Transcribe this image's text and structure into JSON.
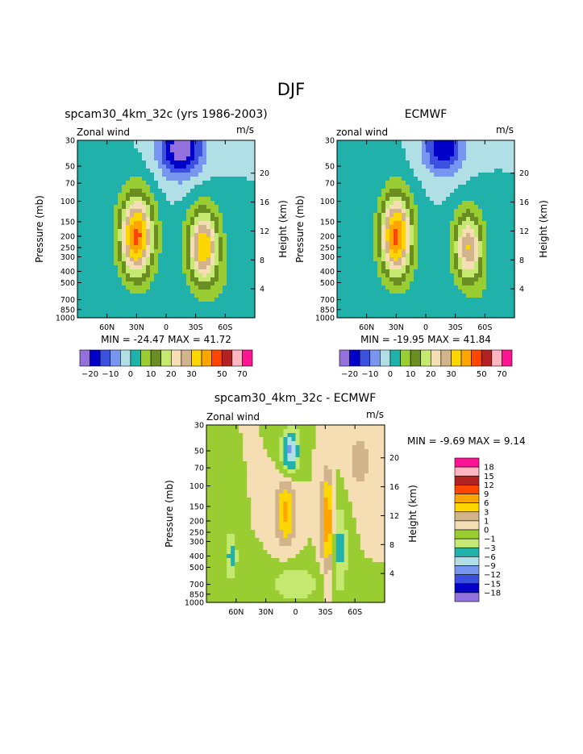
{
  "figure": {
    "main_title": "DJF"
  },
  "colors": {
    "palette": [
      "#9370db",
      "#0000c8",
      "#3c50e0",
      "#7896f0",
      "#b0e0e6",
      "#20b2aa",
      "#9acd32",
      "#6b8e23",
      "#c4e870",
      "#f5deb3",
      "#d2b48c",
      "#ffd700",
      "#ffa500",
      "#ff4500",
      "#b22222",
      "#ffb6c1",
      "#ff1493"
    ],
    "zero_fill": "#f5deb3"
  },
  "chart_data": [
    {
      "id": "model",
      "type": "contour",
      "title": "spcam30_4km_32c (yrs 1986-2003)",
      "left_label": "Zonal wind",
      "right_label": "m/s",
      "ylabel": "Pressure (mb)",
      "y2label": "Height (km)",
      "x_ticks": [
        "60N",
        "30N",
        "0",
        "30S",
        "60S"
      ],
      "x_tick_values": [
        60,
        30,
        0,
        -30,
        -60
      ],
      "xlim": [
        90,
        -90
      ],
      "y_ticks": [
        30,
        50,
        70,
        100,
        150,
        200,
        250,
        300,
        400,
        500,
        700,
        850,
        1000
      ],
      "ylim": [
        1000,
        30
      ],
      "y2_ticks": [
        4,
        8,
        12,
        16,
        20
      ],
      "min_max_text": "MIN = -24.47   MAX =  41.72",
      "min": -24.47,
      "max": 41.72,
      "levels": [
        -20,
        -15,
        -10,
        -5,
        0,
        5,
        10,
        15,
        20,
        25,
        30,
        35,
        40,
        50,
        60,
        70
      ],
      "level_labels": [
        "-20",
        "-10",
        "0",
        "10",
        "20",
        "30",
        "50",
        "70"
      ],
      "features": [
        {
          "lat": 30,
          "p": 200,
          "amp": 41.72,
          "w": 17,
          "h": 0.8
        },
        {
          "lat": -38,
          "p": 250,
          "amp": 35,
          "w": 16,
          "h": 0.75
        },
        {
          "lat": -15,
          "p": 35,
          "amp": -24.47,
          "w": 22,
          "h": 0.55
        },
        {
          "lat": -60,
          "p": 600,
          "amp": 3,
          "w": 14,
          "h": 0.5
        }
      ]
    },
    {
      "id": "obs",
      "type": "contour",
      "title": "ECMWF",
      "left_label": "zonal wind",
      "right_label": "m/s",
      "ylabel": "Pressure (mb)",
      "y2label": "Height (km)",
      "x_ticks": [
        "60N",
        "30N",
        "0",
        "30S",
        "60S"
      ],
      "x_tick_values": [
        60,
        30,
        0,
        -30,
        -60
      ],
      "xlim": [
        90,
        -90
      ],
      "y_ticks": [
        30,
        50,
        70,
        100,
        150,
        200,
        250,
        300,
        400,
        500,
        700,
        850,
        1000
      ],
      "ylim": [
        1000,
        30
      ],
      "y2_ticks": [
        4,
        8,
        12,
        16,
        20
      ],
      "min_max_text": "MIN = -19.95   MAX =  41.84",
      "min": -19.95,
      "max": 41.84,
      "levels": [
        -20,
        -15,
        -10,
        -5,
        0,
        5,
        10,
        15,
        20,
        25,
        30,
        35,
        40,
        50,
        60,
        70
      ],
      "level_labels": [
        "-20",
        "-10",
        "0",
        "10",
        "20",
        "30",
        "50",
        "70"
      ],
      "features": [
        {
          "lat": 30,
          "p": 200,
          "amp": 41.84,
          "w": 16,
          "h": 0.8
        },
        {
          "lat": -43,
          "p": 250,
          "amp": 30,
          "w": 15,
          "h": 0.7
        },
        {
          "lat": -18,
          "p": 35,
          "amp": -19.95,
          "w": 20,
          "h": 0.5
        },
        {
          "lat": -60,
          "p": 600,
          "amp": 3,
          "w": 14,
          "h": 0.5
        }
      ]
    },
    {
      "id": "diff",
      "type": "contour",
      "title": "spcam30_4km_32c - ECMWF",
      "left_label": "Zonal wind",
      "right_label": "m/s",
      "ylabel": "Pressure (mb)",
      "y2label": "Height (km)",
      "x_ticks": [
        "60N",
        "30N",
        "0",
        "30S",
        "60S"
      ],
      "x_tick_values": [
        60,
        30,
        0,
        -30,
        -60
      ],
      "xlim": [
        90,
        -90
      ],
      "y_ticks": [
        30,
        50,
        70,
        100,
        150,
        200,
        250,
        300,
        400,
        500,
        700,
        850,
        1000
      ],
      "ylim": [
        1000,
        30
      ],
      "y2_ticks": [
        4,
        8,
        12,
        16,
        20
      ],
      "min_max_text": "MIN =  -9.69   MAX =   9.14",
      "min": -9.69,
      "max": 9.14,
      "levels": [
        -18,
        -15,
        -12,
        -9,
        -6,
        -3,
        -1,
        0,
        1,
        3,
        6,
        9,
        12,
        15,
        18
      ],
      "level_labels": [
        "18",
        "15",
        "12",
        "9",
        "6",
        "3",
        "1",
        "0",
        "-1",
        "-3",
        "-6",
        "-9",
        "-12",
        "-15",
        "-18"
      ],
      "features": [
        {
          "lat": 10,
          "p": 170,
          "amp": 7,
          "w": 8,
          "h": 0.5
        },
        {
          "lat": -32,
          "p": 200,
          "amp": 9.14,
          "w": 5,
          "h": 0.75
        },
        {
          "lat": 5,
          "p": 50,
          "amp": -9.69,
          "w": 7,
          "h": 0.35
        },
        {
          "lat": -45,
          "p": 350,
          "amp": -4,
          "w": 6,
          "h": 0.7
        },
        {
          "lat": 65,
          "p": 400,
          "amp": -4,
          "w": 5,
          "h": 0.4
        },
        {
          "lat": -65,
          "p": 60,
          "amp": 2,
          "w": 10,
          "h": 0.5
        },
        {
          "lat": 0,
          "p": 700,
          "amp": -3,
          "w": 20,
          "h": 0.3
        }
      ]
    }
  ]
}
